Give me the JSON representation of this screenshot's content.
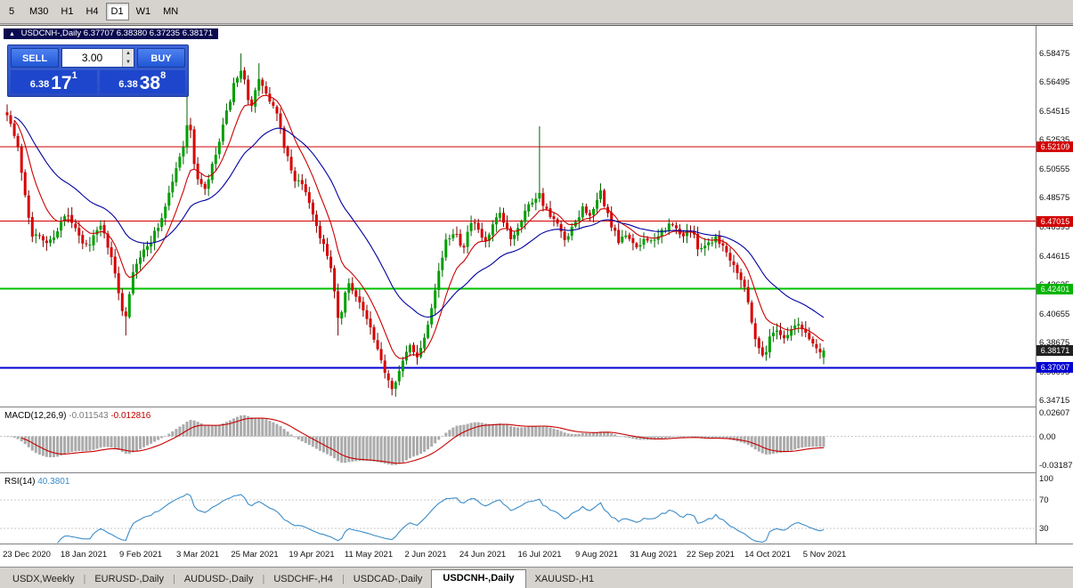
{
  "toolbar": {
    "timeframes": [
      {
        "label": "5",
        "active": false
      },
      {
        "label": "M30",
        "active": false
      },
      {
        "label": "H1",
        "active": false
      },
      {
        "label": "H4",
        "active": false
      },
      {
        "label": "D1",
        "active": true
      },
      {
        "label": "W1",
        "active": false
      },
      {
        "label": "MN",
        "active": false
      }
    ]
  },
  "chart_header": {
    "icon": "▲",
    "symbol_title": "USDCNH-,Daily",
    "ohlc_text": "6.37707 6.38380 6.37235 6.38171"
  },
  "trade_panel": {
    "sell_label": "SELL",
    "buy_label": "BUY",
    "volume": "3.00",
    "spin_up": "▲",
    "spin_down": "▼",
    "sell_price": {
      "small": "6.38",
      "big": "17",
      "sup": "1"
    },
    "buy_price": {
      "small": "6.38",
      "big": "38",
      "sup": "8"
    }
  },
  "price_axis": {
    "ticks": [
      "6.58475",
      "6.56495",
      "6.54515",
      "6.52535",
      "6.50555",
      "6.48575",
      "6.46595",
      "6.44615",
      "6.42635",
      "6.40655",
      "6.38675",
      "6.36695",
      "6.34715"
    ],
    "tags": [
      {
        "text": "6.52109",
        "price": 6.52109,
        "bg": "#D20000"
      },
      {
        "text": "6.47015",
        "price": 6.47015,
        "bg": "#D20000"
      },
      {
        "text": "6.42401",
        "price": 6.42401,
        "bg": "#00B400"
      },
      {
        "text": "6.38171",
        "price": 6.38171,
        "bg": "#202020"
      },
      {
        "text": "6.37007",
        "price": 6.37007,
        "bg": "#0000D2"
      }
    ]
  },
  "macd_panel": {
    "name": "MACD(12,26,9)",
    "value1": "-0.011543",
    "value2": "-0.012816",
    "axis": [
      "0.02607",
      "0.00",
      "-0.03187"
    ]
  },
  "rsi_panel": {
    "name": "RSI(14)",
    "value": "40.3801",
    "axis": [
      "100",
      "70",
      "30"
    ]
  },
  "date_axis": [
    "23 Dec 2020",
    "18 Jan 2021",
    "9 Feb 2021",
    "3 Mar 2021",
    "25 Mar 2021",
    "19 Apr 2021",
    "11 May 2021",
    "2 Jun 2021",
    "24 Jun 2021",
    "16 Jul 2021",
    "9 Aug 2021",
    "31 Aug 2021",
    "22 Sep 2021",
    "14 Oct 2021",
    "5 Nov 2021"
  ],
  "tabs": [
    {
      "label": "USDX,Weekly",
      "active": false
    },
    {
      "label": "EURUSD-,Daily",
      "active": false
    },
    {
      "label": "AUDUSD-,Daily",
      "active": false
    },
    {
      "label": "USDCHF-,H4",
      "active": false
    },
    {
      "label": "USDCAD-,Daily",
      "active": false
    },
    {
      "label": "USDCNH-,Daily",
      "active": true
    },
    {
      "label": "XAUUSD-,H1",
      "active": false
    }
  ],
  "chart_data": {
    "type": "candlestick",
    "symbol": "USDCNH-",
    "timeframe": "Daily",
    "num_candles": 228,
    "y_axis_range": [
      6.34715,
      6.58475
    ],
    "last_ohlc": {
      "open": 6.37707,
      "high": 6.3838,
      "low": 6.37235,
      "close": 6.38171
    },
    "bid": 6.38171,
    "levels": [
      {
        "price": 6.52109,
        "color": "#D20000",
        "width": 1,
        "type": "resistance"
      },
      {
        "price": 6.47015,
        "color": "#D20000",
        "width": 1,
        "type": "resistance"
      },
      {
        "price": 6.42401,
        "color": "#00C000",
        "width": 2,
        "type": "support"
      },
      {
        "price": 6.37007,
        "color": "#0000D2",
        "width": 2,
        "type": "support"
      }
    ],
    "up_color": "#00A000",
    "up_edge": "#006400",
    "down_color": "#D80000",
    "down_edge": "#780000",
    "ma_fast": {
      "period": 10,
      "color": "#CC0000"
    },
    "ma_slow": {
      "period": 30,
      "color": "#0000A0"
    },
    "macd": {
      "fast": 12,
      "slow": 26,
      "signal": 9,
      "values": [
        -0.011543,
        -0.012816
      ],
      "hist_color": "#ABABAB",
      "signal_color": "#C80000",
      "axis_values": [
        0.02607,
        0.0,
        -0.03187
      ]
    },
    "rsi": {
      "period": 14,
      "value": 40.3801,
      "color": "#3C8CC8",
      "levels": [
        70,
        30
      ]
    },
    "price_path": [
      [
        0,
        6.545
      ],
      [
        0.013,
        6.52
      ],
      [
        0.03,
        6.462
      ],
      [
        0.051,
        6.455
      ],
      [
        0.073,
        6.475
      ],
      [
        0.095,
        6.452
      ],
      [
        0.117,
        6.468
      ],
      [
        0.133,
        6.432
      ],
      [
        0.144,
        6.402
      ],
      [
        0.155,
        6.44
      ],
      [
        0.171,
        6.452
      ],
      [
        0.188,
        6.47
      ],
      [
        0.204,
        6.5
      ],
      [
        0.215,
        6.52
      ],
      [
        0.222,
        6.542
      ],
      [
        0.231,
        6.502
      ],
      [
        0.242,
        6.49
      ],
      [
        0.258,
        6.52
      ],
      [
        0.277,
        6.562
      ],
      [
        0.288,
        6.572
      ],
      [
        0.298,
        6.548
      ],
      [
        0.31,
        6.568
      ],
      [
        0.318,
        6.555
      ],
      [
        0.329,
        6.545
      ],
      [
        0.34,
        6.52
      ],
      [
        0.351,
        6.5
      ],
      [
        0.367,
        6.49
      ],
      [
        0.378,
        6.468
      ],
      [
        0.389,
        6.452
      ],
      [
        0.4,
        6.428
      ],
      [
        0.406,
        6.398
      ],
      [
        0.417,
        6.428
      ],
      [
        0.428,
        6.42
      ],
      [
        0.444,
        6.398
      ],
      [
        0.455,
        6.378
      ],
      [
        0.471,
        6.357
      ],
      [
        0.482,
        6.37
      ],
      [
        0.493,
        6.385
      ],
      [
        0.504,
        6.378
      ],
      [
        0.515,
        6.4
      ],
      [
        0.526,
        6.43
      ],
      [
        0.537,
        6.455
      ],
      [
        0.548,
        6.465
      ],
      [
        0.558,
        6.452
      ],
      [
        0.569,
        6.47
      ],
      [
        0.586,
        6.455
      ],
      [
        0.602,
        6.475
      ],
      [
        0.618,
        6.458
      ],
      [
        0.635,
        6.478
      ],
      [
        0.651,
        6.49
      ],
      [
        0.662,
        6.475
      ],
      [
        0.673,
        6.468
      ],
      [
        0.684,
        6.455
      ],
      [
        0.695,
        6.468
      ],
      [
        0.706,
        6.48
      ],
      [
        0.716,
        6.473
      ],
      [
        0.727,
        6.49
      ],
      [
        0.738,
        6.47
      ],
      [
        0.749,
        6.455
      ],
      [
        0.76,
        6.462
      ],
      [
        0.771,
        6.45
      ],
      [
        0.782,
        6.46
      ],
      [
        0.793,
        6.455
      ],
      [
        0.804,
        6.465
      ],
      [
        0.814,
        6.468
      ],
      [
        0.825,
        6.46
      ],
      [
        0.836,
        6.465
      ],
      [
        0.847,
        6.452
      ],
      [
        0.858,
        6.455
      ],
      [
        0.869,
        6.46
      ],
      [
        0.88,
        6.45
      ],
      [
        0.891,
        6.44
      ],
      [
        0.902,
        6.428
      ],
      [
        0.913,
        6.4
      ],
      [
        0.918,
        6.385
      ],
      [
        0.927,
        6.378
      ],
      [
        0.934,
        6.39
      ],
      [
        0.942,
        6.398
      ],
      [
        0.951,
        6.39
      ],
      [
        0.959,
        6.395
      ],
      [
        0.967,
        6.4
      ],
      [
        0.976,
        6.395
      ],
      [
        0.983,
        6.39
      ],
      [
        0.991,
        6.383
      ],
      [
        1,
        6.3817
      ]
    ],
    "spikes": [
      [
        0.144,
        "low",
        6.392
      ],
      [
        0.222,
        "high",
        6.556
      ],
      [
        0.286,
        "high",
        6.5847
      ],
      [
        0.31,
        "high",
        6.578
      ],
      [
        0.406,
        "low",
        6.392
      ],
      [
        0.471,
        "low",
        6.3531
      ],
      [
        0.654,
        "high",
        6.535
      ],
      [
        1,
        "low",
        6.37235
      ]
    ]
  }
}
